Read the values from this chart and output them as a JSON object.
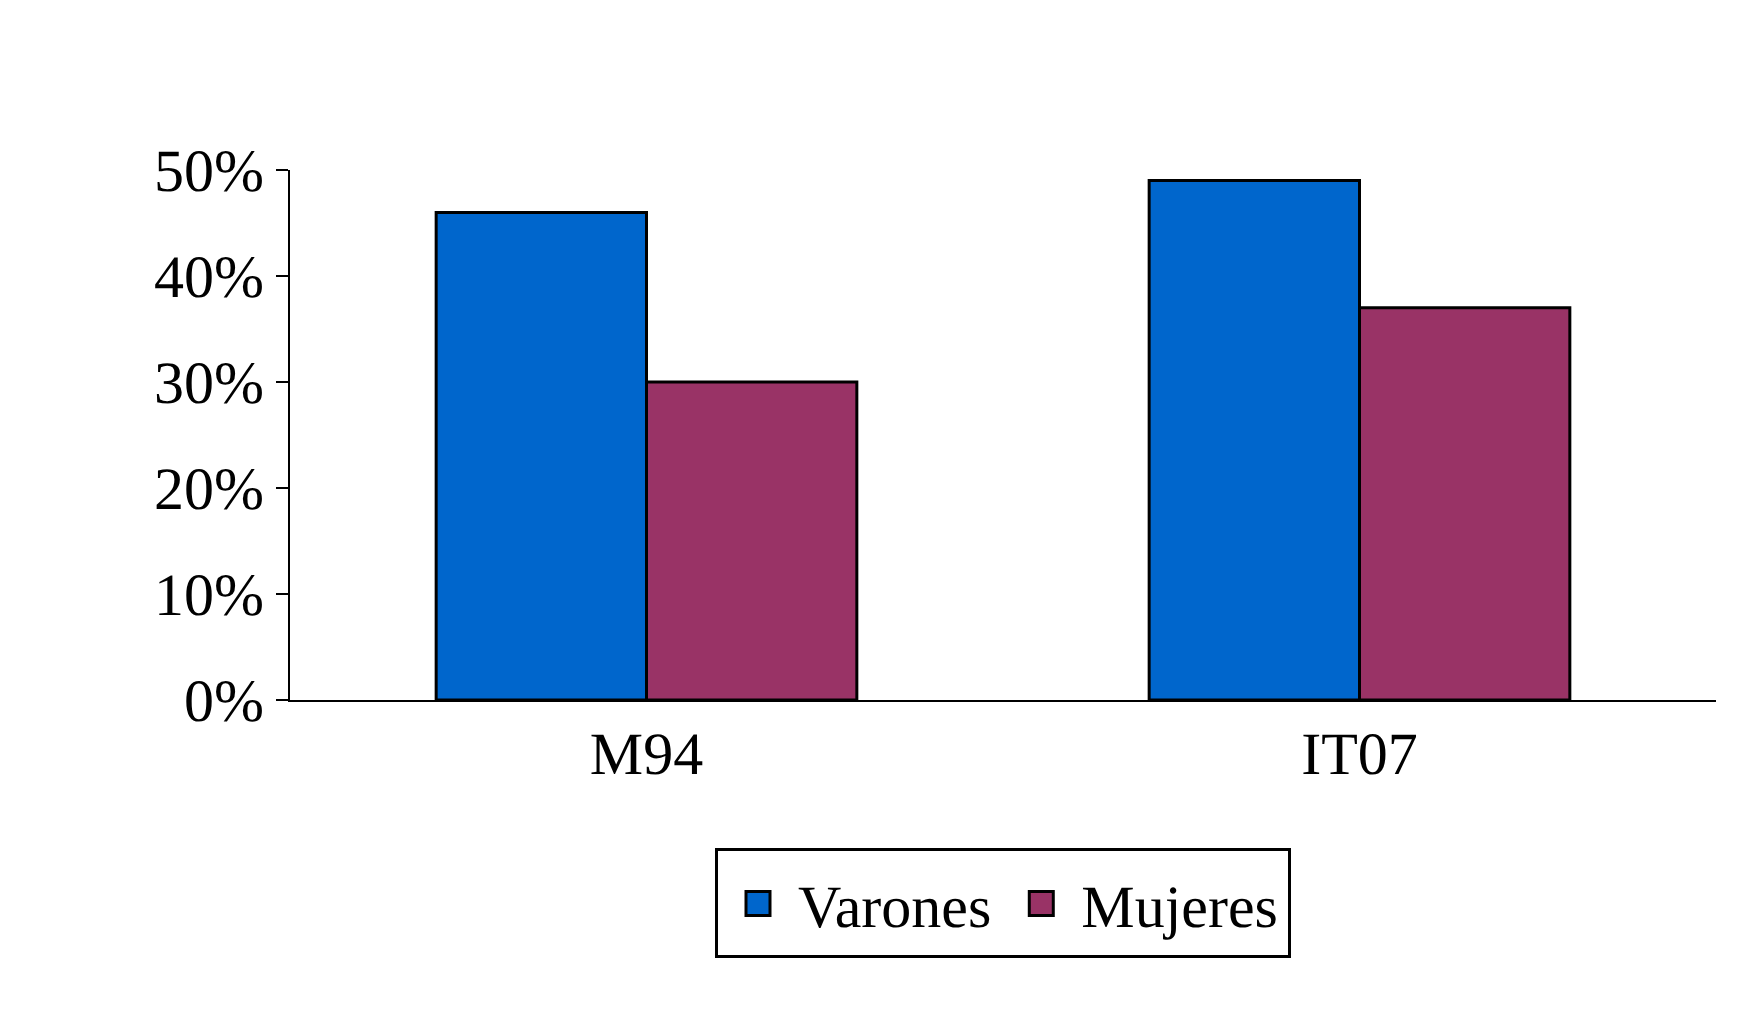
{
  "chart_data": {
    "type": "bar",
    "categories": [
      "M94",
      "IT07"
    ],
    "series": [
      {
        "name": "Varones",
        "color": "#0066cc",
        "values": [
          46,
          49
        ]
      },
      {
        "name": "Mujeres",
        "color": "#993366",
        "values": [
          30,
          37
        ]
      }
    ],
    "ylim": [
      0,
      50
    ],
    "yticks": [
      {
        "value": 0,
        "label": "0%"
      },
      {
        "value": 10,
        "label": "10%"
      },
      {
        "value": 20,
        "label": "20%"
      },
      {
        "value": 30,
        "label": "30%"
      },
      {
        "value": 40,
        "label": "40%"
      },
      {
        "value": 50,
        "label": "50%"
      }
    ],
    "legend": "bottom"
  }
}
